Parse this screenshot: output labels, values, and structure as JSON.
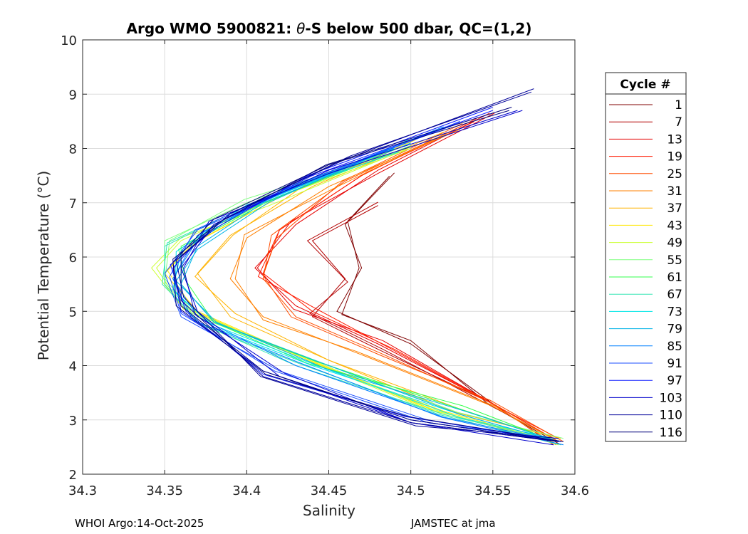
{
  "chart_data": {
    "type": "line",
    "title": "Argo WMO 5900821: θ-S below 500 dbar,  QC=(1,2)",
    "title_prefix": "Argo WMO 5900821: ",
    "title_theta": "θ",
    "title_suffix": "-S below 500 dbar,  QC=(1,2)",
    "xlabel": "Salinity",
    "ylabel": "Potential Temperature (°C)",
    "xlim": [
      34.3,
      34.6
    ],
    "ylim": [
      2,
      10
    ],
    "xticks": [
      34.3,
      34.35,
      34.4,
      34.45,
      34.5,
      34.55,
      34.6
    ],
    "xtick_labels": [
      "34.3",
      "34.35",
      "34.4",
      "34.45",
      "34.5",
      "34.55",
      "34.6"
    ],
    "yticks": [
      2,
      3,
      4,
      5,
      6,
      7,
      8,
      9,
      10
    ],
    "ytick_labels": [
      "2",
      "3",
      "4",
      "5",
      "6",
      "7",
      "8",
      "9",
      "10"
    ],
    "grid": true,
    "legend_title": "Cycle #",
    "legend_position": "outside-right",
    "series": [
      {
        "name": "1",
        "color": "#800000",
        "points": [
          [
            34.49,
            7.55
          ],
          [
            34.46,
            6.6
          ],
          [
            34.47,
            5.8
          ],
          [
            34.455,
            5.0
          ],
          [
            34.5,
            4.4
          ],
          [
            34.55,
            3.3
          ],
          [
            34.59,
            2.6
          ]
        ]
      },
      {
        "name": "7",
        "color": "#b30000",
        "points": [
          [
            34.48,
            6.95
          ],
          [
            34.44,
            6.3
          ],
          [
            34.46,
            5.6
          ],
          [
            34.44,
            4.9
          ],
          [
            34.48,
            4.3
          ],
          [
            34.55,
            3.3
          ],
          [
            34.59,
            2.6
          ]
        ]
      },
      {
        "name": "13",
        "color": "#e60000",
        "points": [
          [
            34.548,
            8.65
          ],
          [
            34.48,
            7.6
          ],
          [
            34.43,
            6.6
          ],
          [
            34.405,
            5.8
          ],
          [
            34.43,
            5.1
          ],
          [
            34.48,
            4.4
          ],
          [
            34.55,
            3.3
          ],
          [
            34.59,
            2.6
          ]
        ]
      },
      {
        "name": "19",
        "color": "#ff1a00",
        "points": [
          [
            34.54,
            8.55
          ],
          [
            34.47,
            7.5
          ],
          [
            34.42,
            6.5
          ],
          [
            34.41,
            5.7
          ],
          [
            34.44,
            5.0
          ],
          [
            34.49,
            4.3
          ],
          [
            34.55,
            3.3
          ],
          [
            34.59,
            2.6
          ]
        ]
      },
      {
        "name": "25",
        "color": "#ff4d00",
        "points": [
          [
            34.53,
            8.4
          ],
          [
            34.46,
            7.4
          ],
          [
            34.415,
            6.4
          ],
          [
            34.41,
            5.6
          ],
          [
            34.43,
            4.9
          ],
          [
            34.48,
            4.25
          ],
          [
            34.55,
            3.3
          ],
          [
            34.59,
            2.6
          ]
        ]
      },
      {
        "name": "31",
        "color": "#ff8000",
        "points": [
          [
            34.53,
            8.35
          ],
          [
            34.45,
            7.3
          ],
          [
            34.4,
            6.35
          ],
          [
            34.39,
            5.6
          ],
          [
            34.41,
            4.9
          ],
          [
            34.47,
            4.2
          ],
          [
            34.55,
            3.25
          ],
          [
            34.59,
            2.6
          ]
        ]
      },
      {
        "name": "37",
        "color": "#ffb300",
        "points": [
          [
            34.52,
            8.3
          ],
          [
            34.44,
            7.3
          ],
          [
            34.39,
            6.4
          ],
          [
            34.37,
            5.7
          ],
          [
            34.39,
            4.9
          ],
          [
            34.45,
            4.1
          ],
          [
            34.53,
            3.2
          ],
          [
            34.59,
            2.6
          ]
        ]
      },
      {
        "name": "43",
        "color": "#ffe600",
        "points": [
          [
            34.5,
            8.1
          ],
          [
            34.42,
            7.1
          ],
          [
            34.37,
            6.3
          ],
          [
            34.35,
            5.7
          ],
          [
            34.37,
            5.0
          ],
          [
            34.43,
            4.2
          ],
          [
            34.52,
            3.1
          ],
          [
            34.59,
            2.6
          ]
        ]
      },
      {
        "name": "49",
        "color": "#ccff33",
        "points": [
          [
            34.5,
            8.0
          ],
          [
            34.41,
            7.0
          ],
          [
            34.36,
            6.3
          ],
          [
            34.345,
            5.8
          ],
          [
            34.36,
            5.1
          ],
          [
            34.42,
            4.3
          ],
          [
            34.51,
            3.2
          ],
          [
            34.59,
            2.6
          ]
        ]
      },
      {
        "name": "55",
        "color": "#80ff80",
        "points": [
          [
            34.49,
            8.0
          ],
          [
            34.4,
            7.0
          ],
          [
            34.35,
            6.3
          ],
          [
            34.35,
            5.6
          ],
          [
            34.37,
            4.9
          ],
          [
            34.44,
            4.1
          ],
          [
            34.53,
            3.2
          ],
          [
            34.59,
            2.6
          ]
        ]
      },
      {
        "name": "61",
        "color": "#33ff4d",
        "points": [
          [
            34.5,
            8.05
          ],
          [
            34.41,
            7.0
          ],
          [
            34.36,
            6.2
          ],
          [
            34.36,
            5.5
          ],
          [
            34.38,
            4.8
          ],
          [
            34.44,
            4.1
          ],
          [
            34.53,
            3.2
          ],
          [
            34.59,
            2.6
          ]
        ]
      },
      {
        "name": "67",
        "color": "#33e6b3",
        "points": [
          [
            34.48,
            7.9
          ],
          [
            34.4,
            6.95
          ],
          [
            34.35,
            6.2
          ],
          [
            34.35,
            5.5
          ],
          [
            34.37,
            4.8
          ],
          [
            34.43,
            4.0
          ],
          [
            34.52,
            3.1
          ],
          [
            34.59,
            2.6
          ]
        ]
      },
      {
        "name": "73",
        "color": "#00e6e6",
        "points": [
          [
            34.49,
            8.0
          ],
          [
            34.4,
            6.9
          ],
          [
            34.36,
            6.1
          ],
          [
            34.355,
            5.4
          ],
          [
            34.38,
            4.7
          ],
          [
            34.44,
            4.0
          ],
          [
            34.53,
            3.1
          ],
          [
            34.59,
            2.6
          ]
        ]
      },
      {
        "name": "79",
        "color": "#00b3e6",
        "points": [
          [
            34.5,
            8.1
          ],
          [
            34.41,
            7.0
          ],
          [
            34.37,
            6.2
          ],
          [
            34.36,
            5.5
          ],
          [
            34.38,
            4.8
          ],
          [
            34.45,
            4.0
          ],
          [
            34.53,
            3.1
          ],
          [
            34.59,
            2.6
          ]
        ]
      },
      {
        "name": "85",
        "color": "#0080ff",
        "points": [
          [
            34.52,
            8.4
          ],
          [
            34.42,
            7.2
          ],
          [
            34.37,
            6.4
          ],
          [
            34.355,
            5.6
          ],
          [
            34.37,
            4.9
          ],
          [
            34.43,
            4.0
          ],
          [
            34.52,
            3.05
          ],
          [
            34.59,
            2.6
          ]
        ]
      },
      {
        "name": "91",
        "color": "#1a4dff",
        "points": [
          [
            34.53,
            8.5
          ],
          [
            34.43,
            7.3
          ],
          [
            34.37,
            6.5
          ],
          [
            34.35,
            5.7
          ],
          [
            34.36,
            4.9
          ],
          [
            34.42,
            3.9
          ],
          [
            34.51,
            3.0
          ],
          [
            34.59,
            2.6
          ]
        ]
      },
      {
        "name": "97",
        "color": "#0d1aff",
        "points": [
          [
            34.55,
            8.7
          ],
          [
            34.44,
            7.5
          ],
          [
            34.38,
            6.6
          ],
          [
            34.355,
            5.8
          ],
          [
            34.36,
            5.0
          ],
          [
            34.41,
            3.9
          ],
          [
            34.5,
            3.0
          ],
          [
            34.59,
            2.6
          ]
        ]
      },
      {
        "name": "103",
        "color": "#0000cc",
        "points": [
          [
            34.565,
            8.7
          ],
          [
            34.45,
            7.6
          ],
          [
            34.38,
            6.6
          ],
          [
            34.36,
            5.8
          ],
          [
            34.37,
            5.0
          ],
          [
            34.42,
            3.8
          ],
          [
            34.5,
            2.95
          ],
          [
            34.59,
            2.6
          ]
        ]
      },
      {
        "name": "110",
        "color": "#000099",
        "points": [
          [
            34.575,
            9.1
          ],
          [
            34.46,
            7.8
          ],
          [
            34.39,
            6.8
          ],
          [
            34.36,
            6.0
          ],
          [
            34.36,
            5.2
          ],
          [
            34.41,
            3.8
          ],
          [
            34.5,
            2.95
          ],
          [
            34.59,
            2.6
          ]
        ]
      },
      {
        "name": "116",
        "color": "#00007a",
        "points": [
          [
            34.56,
            8.7
          ],
          [
            34.45,
            7.7
          ],
          [
            34.38,
            6.7
          ],
          [
            34.355,
            5.9
          ],
          [
            34.36,
            5.1
          ],
          [
            34.41,
            3.9
          ],
          [
            34.5,
            3.0
          ],
          [
            34.59,
            2.6
          ]
        ]
      }
    ],
    "annotations": [
      {
        "text": "WHOI Argo:14-Oct-2025"
      },
      {
        "text": "JAMSTEC at jma"
      }
    ]
  }
}
